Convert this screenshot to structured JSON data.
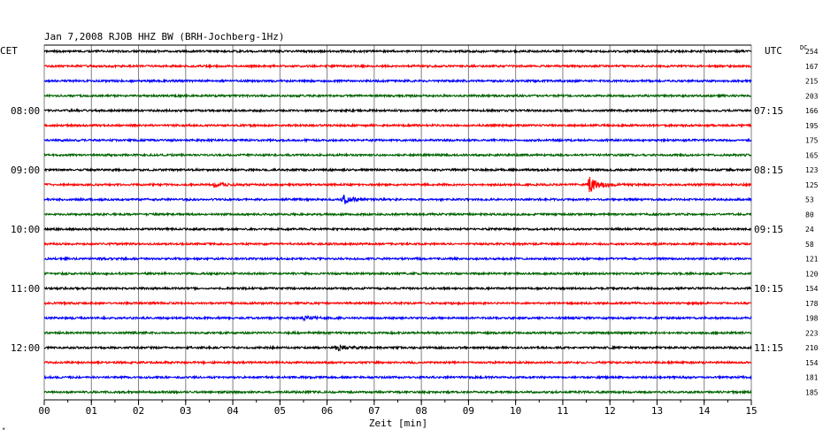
{
  "chart_data": {
    "type": "line",
    "title": "Jan 7,2008   RJOB HHZ BW (BRH-Jochberg-1Hz)",
    "xlabel": "Zeit [min]",
    "left_axis_label": "CET",
    "right_axis_label": "UTC",
    "dc_label": "DC",
    "xlim": [
      0,
      15
    ],
    "x_ticks": [
      "00",
      "01",
      "02",
      "03",
      "04",
      "05",
      "06",
      "07",
      "08",
      "09",
      "10",
      "11",
      "12",
      "13",
      "14",
      "15"
    ],
    "trace_count": 24,
    "trace_interval_minutes": 15,
    "trace_colors": [
      "#000000",
      "#ff0000",
      "#0000ff",
      "#006400"
    ],
    "left_hour_labels": [
      {
        "trace": 4,
        "label": "08:00"
      },
      {
        "trace": 8,
        "label": "09:00"
      },
      {
        "trace": 12,
        "label": "10:00"
      },
      {
        "trace": 16,
        "label": "11:00"
      },
      {
        "trace": 20,
        "label": "12:00"
      }
    ],
    "right_hour_labels": [
      {
        "trace": 4,
        "label": "07:15"
      },
      {
        "trace": 8,
        "label": "08:15"
      },
      {
        "trace": 12,
        "label": "09:15"
      },
      {
        "trace": 16,
        "label": "10:15"
      },
      {
        "trace": 20,
        "label": "11:15"
      }
    ],
    "dc_values": [
      "254",
      "167",
      "215",
      "203",
      "166",
      "195",
      "175",
      "165",
      "123",
      "125",
      "53",
      "80",
      "24",
      "58",
      "121",
      "120",
      "154",
      "178",
      "198",
      "223",
      "210",
      "154",
      "181",
      "185"
    ],
    "events": [
      {
        "trace": 9,
        "minute": 11.55,
        "amplitude": 9
      },
      {
        "trace": 10,
        "minute": 6.35,
        "amplitude": 5
      },
      {
        "trace": 9,
        "minute": 3.6,
        "amplitude": 2
      },
      {
        "trace": 20,
        "minute": 6.2,
        "amplitude": 3
      },
      {
        "trace": 18,
        "minute": 5.5,
        "amplitude": 2
      }
    ],
    "grid": true
  },
  "corner_mark": "*"
}
